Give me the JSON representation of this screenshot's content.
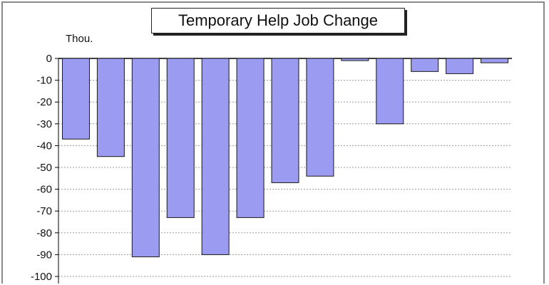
{
  "chart_data": {
    "type": "bar",
    "title": "Temporary Help Job Change",
    "unit_label": "Thou.",
    "xlabel": "",
    "ylabel": "",
    "ylim": [
      -100,
      0
    ],
    "yticks": [
      0,
      -10,
      -20,
      -30,
      -40,
      -50,
      -60,
      -70,
      -80,
      -90,
      -100
    ],
    "grid": true,
    "categories": [
      "",
      "",
      "",
      "",
      "",
      "",
      "",
      "",
      "",
      "",
      "",
      "",
      ""
    ],
    "values": [
      -37,
      -45,
      -91,
      -73,
      -90,
      -73,
      -57,
      -54,
      -1,
      -30,
      -6,
      -7,
      -2
    ],
    "colors": {
      "bar_fill": "#9b9bf2",
      "bar_stroke": "#1a1a1a",
      "grid": "#9a9a9a",
      "axis": "#000000"
    }
  }
}
